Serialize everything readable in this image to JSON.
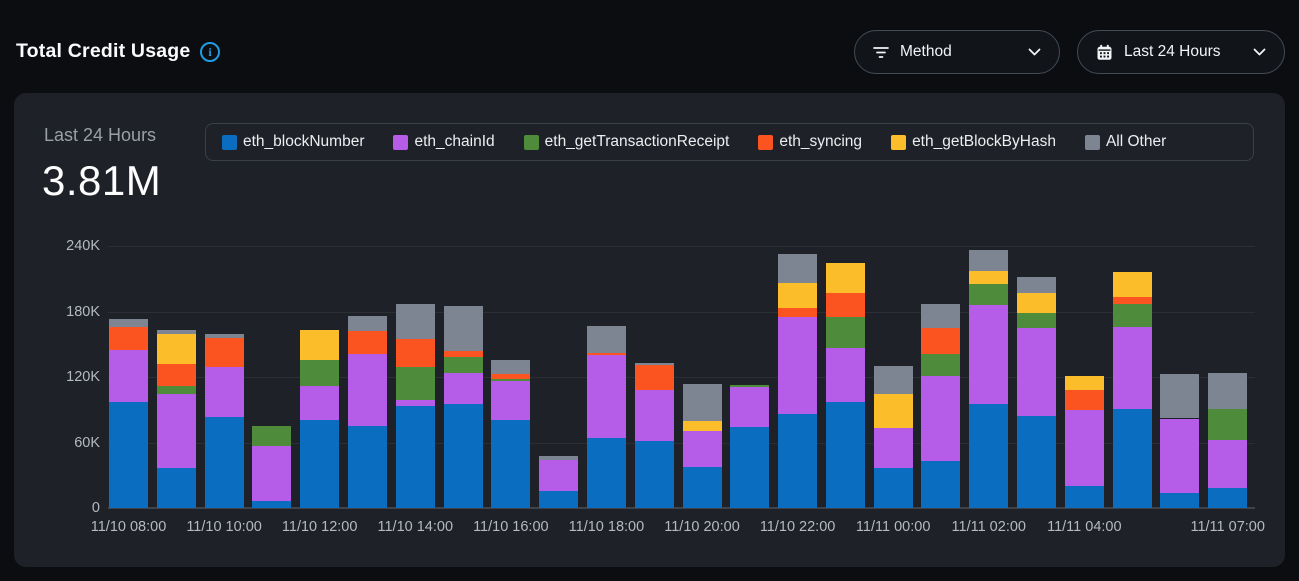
{
  "header": {
    "title": "Total Credit Usage",
    "filters": {
      "method": {
        "label": "Method",
        "icon": "filter-icon"
      },
      "range": {
        "label": "Last 24 Hours",
        "icon": "calendar-icon"
      }
    }
  },
  "card": {
    "period_label": "Last 24 Hours",
    "total_value": "3.81M"
  },
  "colors": {
    "page_bg": "#0b0d10",
    "card_bg": "#1e2127",
    "pill_border": "#434b55",
    "legend_border": "#3a4049",
    "grid": "#2b2f35",
    "baseline": "#3e434a",
    "muted_text": "#99a0a8",
    "axis_text": "#b5bac1",
    "info_blue": "#1f9ce5"
  },
  "chart_data": {
    "type": "bar",
    "stacked": true,
    "title": "Total Credit Usage - Last 24 Hours",
    "unit": "credits (thousands)",
    "ylim": [
      0,
      240
    ],
    "grid": true,
    "legend_position": "top",
    "yticks": [
      {
        "v": 0,
        "label": "0"
      },
      {
        "v": 60,
        "label": "60K"
      },
      {
        "v": 120,
        "label": "120K"
      },
      {
        "v": 180,
        "label": "180K"
      },
      {
        "v": 240,
        "label": "240K"
      }
    ],
    "categories": [
      "11/10 08:00",
      "11/10 09:00",
      "11/10 10:00",
      "11/10 11:00",
      "11/10 12:00",
      "11/10 13:00",
      "11/10 14:00",
      "11/10 15:00",
      "11/10 16:00",
      "11/10 17:00",
      "11/10 18:00",
      "11/10 19:00",
      "11/10 20:00",
      "11/10 21:00",
      "11/10 22:00",
      "11/10 23:00",
      "11/11 00:00",
      "11/11 01:00",
      "11/11 02:00",
      "11/11 03:00",
      "11/11 04:00",
      "11/11 05:00",
      "11/11 06:00",
      "11/11 07:00"
    ],
    "x_tick_labels": [
      {
        "index": 0,
        "label": "11/10 08:00"
      },
      {
        "index": 2,
        "label": "11/10 10:00"
      },
      {
        "index": 4,
        "label": "11/10 12:00"
      },
      {
        "index": 6,
        "label": "11/10 14:00"
      },
      {
        "index": 8,
        "label": "11/10 16:00"
      },
      {
        "index": 10,
        "label": "11/10 18:00"
      },
      {
        "index": 12,
        "label": "11/10 20:00"
      },
      {
        "index": 14,
        "label": "11/10 22:00"
      },
      {
        "index": 16,
        "label": "11/11 00:00"
      },
      {
        "index": 18,
        "label": "11/11 02:00"
      },
      {
        "index": 20,
        "label": "11/11 04:00"
      },
      {
        "index": 23,
        "label": "11/11 07:00"
      }
    ],
    "series": [
      {
        "name": "eth_blockNumber",
        "color": "#0b6dbf",
        "values": [
          97,
          37,
          83,
          6,
          81,
          75,
          93,
          95,
          81,
          16,
          64,
          61,
          38,
          74,
          86,
          97,
          37,
          43,
          95,
          84,
          20,
          91,
          14,
          18
        ]
      },
      {
        "name": "eth_chainId",
        "color": "#b55ce8",
        "values": [
          48,
          67,
          46,
          51,
          31,
          66,
          6,
          29,
          35,
          28,
          76,
          47,
          33,
          37,
          89,
          50,
          36,
          78,
          91,
          81,
          70,
          75,
          68,
          44
        ]
      },
      {
        "name": "eth_getTransactionReceipt",
        "color": "#4e8b3a",
        "values": [
          0,
          8,
          0,
          18,
          24,
          0,
          30,
          14,
          2,
          0,
          0,
          0,
          0,
          2,
          0,
          28,
          0,
          20,
          19,
          14,
          0,
          21,
          0,
          29
        ]
      },
      {
        "name": "eth_syncing",
        "color": "#fb5420",
        "values": [
          21,
          20,
          27,
          0,
          0,
          21,
          26,
          6,
          5,
          0,
          2,
          23,
          0,
          0,
          8,
          22,
          0,
          24,
          0,
          0,
          18,
          6,
          0,
          0
        ]
      },
      {
        "name": "eth_getBlockByHash",
        "color": "#fcbd2b",
        "values": [
          0,
          27,
          0,
          0,
          27,
          0,
          0,
          0,
          0,
          0,
          0,
          0,
          9,
          0,
          23,
          27,
          31,
          0,
          12,
          18,
          13,
          23,
          0,
          0
        ]
      },
      {
        "name": "All Other",
        "color": "#7d8593",
        "values": [
          7,
          4,
          3,
          0,
          0,
          14,
          32,
          41,
          13,
          4,
          25,
          2,
          34,
          0,
          27,
          0,
          26,
          22,
          19,
          15,
          0,
          0,
          41,
          33
        ]
      }
    ]
  }
}
